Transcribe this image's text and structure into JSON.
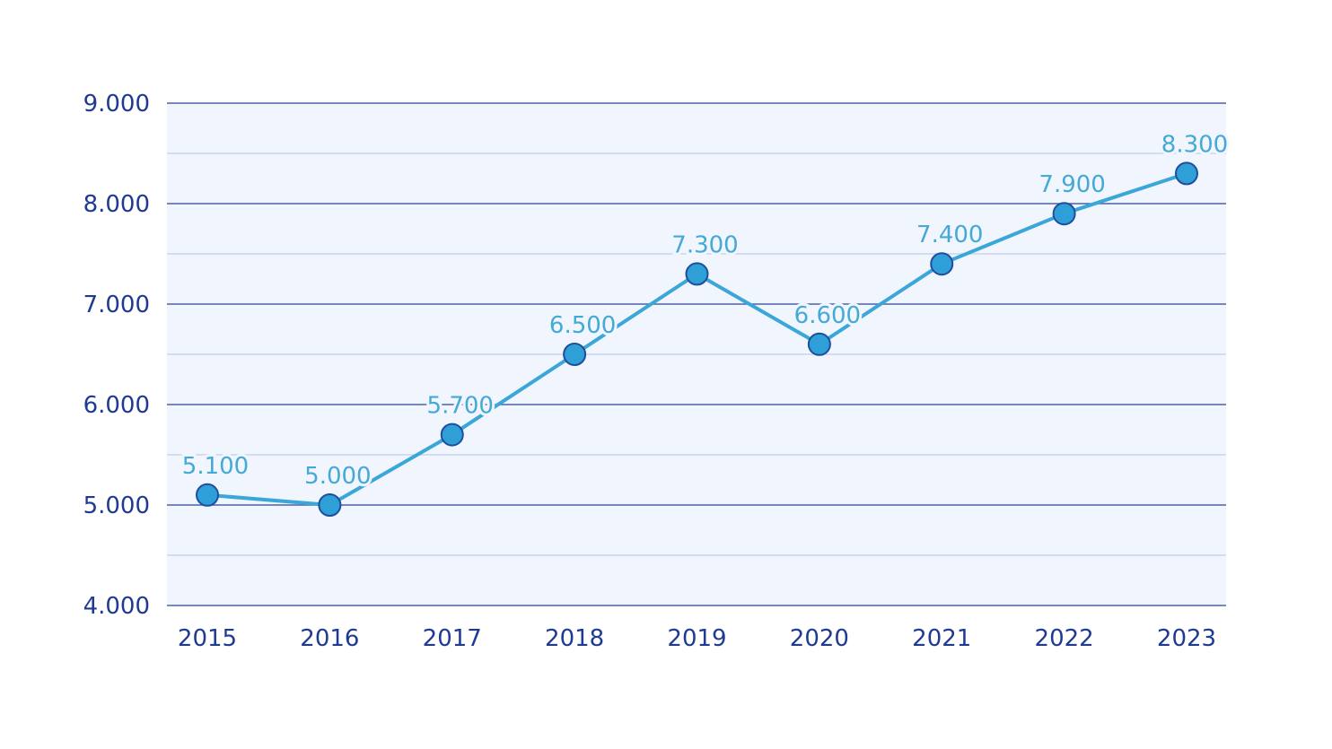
{
  "chart_data": {
    "type": "line",
    "title": "",
    "xlabel": "",
    "ylabel": "",
    "x": [
      "2015",
      "2016",
      "2017",
      "2018",
      "2019",
      "2020",
      "2021",
      "2022",
      "2023"
    ],
    "series": [
      {
        "values": [
          5100,
          5000,
          5700,
          6500,
          7300,
          6600,
          7400,
          7900,
          8300
        ],
        "labels": [
          "5.100",
          "5.000",
          "5.700",
          "6.500",
          "7.300",
          "6.600",
          "7.400",
          "7.900",
          "8.300"
        ]
      }
    ],
    "ylim": [
      4000,
      9000
    ],
    "yticks": [
      4000,
      5000,
      6000,
      7000,
      8000,
      9000
    ],
    "ytick_labels": [
      "4.000",
      "5.000",
      "6.000",
      "7.000",
      "8.000",
      "9.000"
    ],
    "grid": true,
    "legend": "none",
    "colors": {
      "line": "#3aa7d8",
      "marker_fill": "#2f9fd8",
      "marker_stroke": "#1f4e9c",
      "axis_text": "#1f3a93",
      "data_label": "#45a9d6",
      "plot_bg": "#f1f5fd",
      "grid_major": "#4b63a8",
      "grid_minor": "#c9d3ee"
    }
  }
}
